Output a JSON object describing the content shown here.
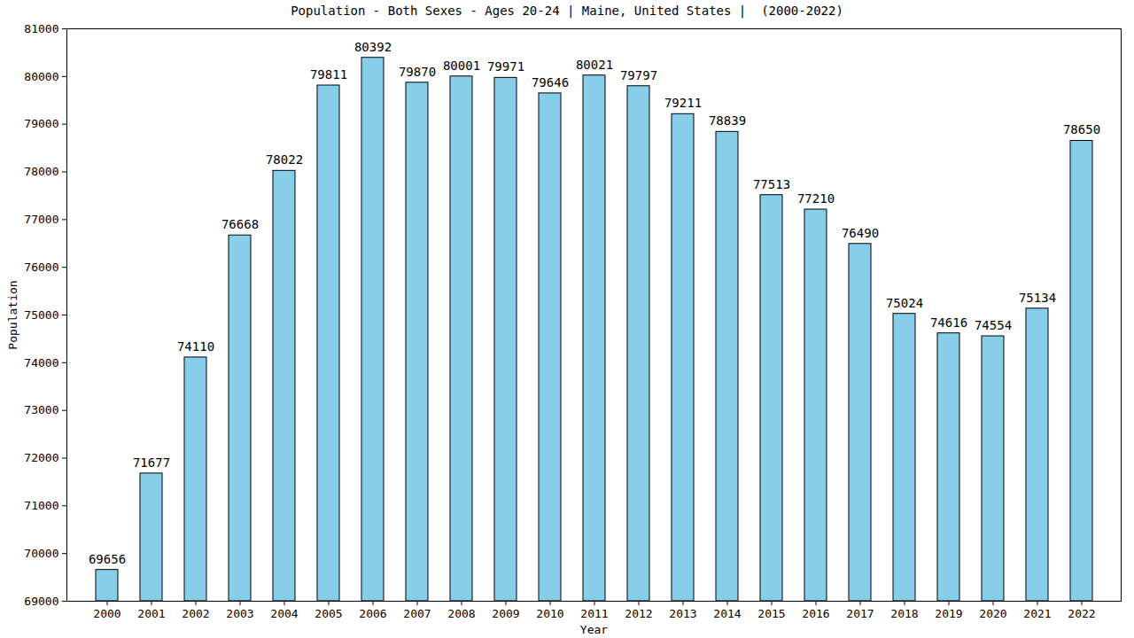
{
  "chart_data": {
    "type": "bar",
    "title": "Population - Both Sexes - Ages 20-24 | Maine, United States |  (2000-2022)",
    "x_label": "Year",
    "y_label": "Population",
    "categories": [
      "2000",
      "2001",
      "2002",
      "2003",
      "2004",
      "2005",
      "2006",
      "2007",
      "2008",
      "2009",
      "2010",
      "2011",
      "2012",
      "2013",
      "2014",
      "2015",
      "2016",
      "2017",
      "2018",
      "2019",
      "2020",
      "2021",
      "2022"
    ],
    "values": [
      69656,
      71677,
      74110,
      76668,
      78022,
      79811,
      80392,
      79870,
      80001,
      79971,
      79646,
      80021,
      79797,
      79211,
      78839,
      77513,
      77210,
      76490,
      75024,
      74616,
      74554,
      75134,
      78650
    ],
    "color": "#87ceeb",
    "ylim": [
      69000,
      81000
    ],
    "yticks": [
      69000,
      70000,
      71000,
      72000,
      73000,
      74000,
      75000,
      76000,
      77000,
      78000,
      79000,
      80000,
      81000
    ],
    "grid": false,
    "data_labels": true
  }
}
